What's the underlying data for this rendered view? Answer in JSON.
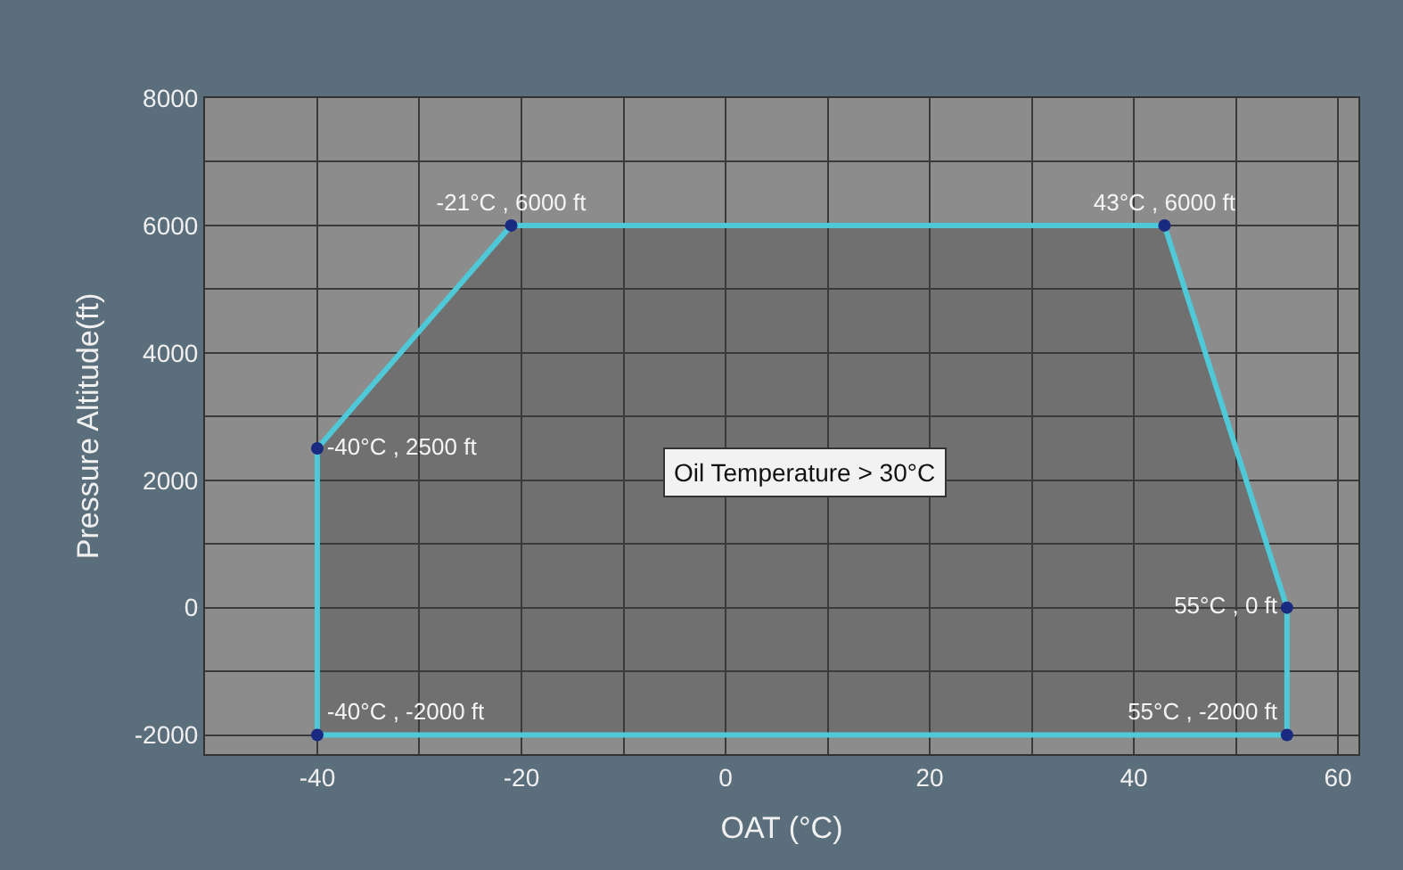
{
  "chart_data": {
    "type": "area",
    "xlabel": "OAT (°C)",
    "ylabel": "Pressure Altitude(ft)",
    "x": [
      -40,
      -40,
      -21,
      43,
      55,
      55
    ],
    "series": [
      {
        "color": "#4fc8d8",
        "values": [
          -2000,
          2500,
          6000,
          6000,
          0,
          -2000
        ],
        "value_labels": [
          "-40°C , -2000 ft",
          "-40°C , 2500 ft",
          "-21°C , 6000 ft",
          "43°C , 6000 ft",
          "55°C , 0 ft",
          "55°C , -2000 ft"
        ]
      }
    ],
    "xlim": [
      -51,
      62
    ],
    "ylim": [
      -2300,
      8000
    ],
    "xticks": [
      -40,
      {
        "value": -30,
        "label": null
      },
      -20,
      {
        "value": -10,
        "label": null
      },
      0,
      {
        "value": 10,
        "label": null
      },
      20,
      {
        "value": 30,
        "label": null
      },
      40,
      {
        "value": 50,
        "label": null
      },
      60
    ],
    "yticks": [
      -2000,
      {
        "value": -1000,
        "label": null
      },
      0,
      {
        "value": 1000,
        "label": null
      },
      2000,
      {
        "value": 3000,
        "label": null
      },
      4000,
      {
        "value": 5000,
        "label": null
      },
      6000,
      {
        "value": 7000,
        "label": null
      },
      8000
    ],
    "grid": true,
    "marker": "circle",
    "line_style": "solid",
    "annotations": [
      "Oil Temperature > 30°C"
    ]
  }
}
